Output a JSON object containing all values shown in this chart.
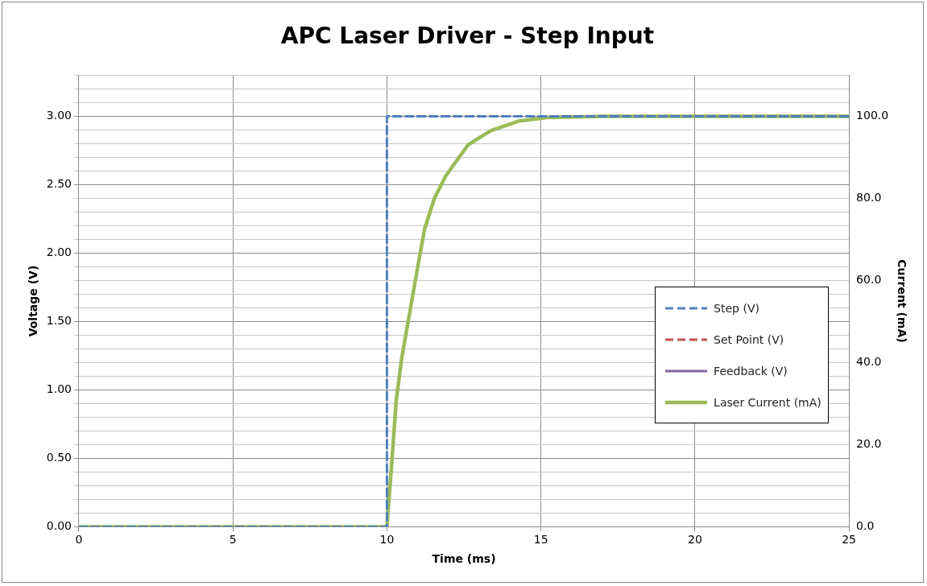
{
  "chart_data": {
    "type": "line",
    "title": "APC Laser Driver - Step Input",
    "xlabel": "Time (ms)",
    "ylabel": "Voltage (V)",
    "y2label": "Current (mA)",
    "xlim": [
      0,
      25
    ],
    "xticks": [
      0,
      5,
      10,
      15,
      20,
      25
    ],
    "ylim": [
      0,
      3.3
    ],
    "yticks": [
      {
        "value": 0,
        "label": "0.00"
      },
      {
        "value": 0.1,
        "label": null
      },
      {
        "value": 0.2,
        "label": null
      },
      {
        "value": 0.3,
        "label": null
      },
      {
        "value": 0.4,
        "label": null
      },
      {
        "value": 0.5,
        "label": "0.50"
      },
      {
        "value": 0.6,
        "label": null
      },
      {
        "value": 0.7,
        "label": null
      },
      {
        "value": 0.8,
        "label": null
      },
      {
        "value": 0.9,
        "label": null
      },
      {
        "value": 1,
        "label": "1.00"
      },
      {
        "value": 1.1,
        "label": null
      },
      {
        "value": 1.2,
        "label": null
      },
      {
        "value": 1.3,
        "label": null
      },
      {
        "value": 1.4,
        "label": null
      },
      {
        "value": 1.5,
        "label": "1.50"
      },
      {
        "value": 1.6,
        "label": null
      },
      {
        "value": 1.7,
        "label": null
      },
      {
        "value": 1.8,
        "label": null
      },
      {
        "value": 1.9,
        "label": null
      },
      {
        "value": 2,
        "label": "2.00"
      },
      {
        "value": 2.1,
        "label": null
      },
      {
        "value": 2.2,
        "label": null
      },
      {
        "value": 2.3,
        "label": null
      },
      {
        "value": 2.4,
        "label": null
      },
      {
        "value": 2.5,
        "label": "2.50"
      },
      {
        "value": 2.6,
        "label": null
      },
      {
        "value": 2.7,
        "label": null
      },
      {
        "value": 2.8,
        "label": null
      },
      {
        "value": 2.9,
        "label": null
      },
      {
        "value": 3,
        "label": "3.00"
      },
      {
        "value": 3.1,
        "label": null
      },
      {
        "value": 3.2,
        "label": null
      },
      {
        "value": 3.3,
        "label": null
      }
    ],
    "y2lim": [
      0,
      110
    ],
    "y2ticks": [
      {
        "value": 0,
        "label": "0.0"
      },
      {
        "value": 20,
        "label": "20.0"
      },
      {
        "value": 40,
        "label": "40.0"
      },
      {
        "value": 60,
        "label": "60.0"
      },
      {
        "value": 80,
        "label": "80.0"
      },
      {
        "value": 100,
        "label": "100.0"
      }
    ],
    "grid": true,
    "legend": "right",
    "marker": "none",
    "series": [
      {
        "name": "Step (V)",
        "color": "#4f81bd",
        "line_style": "dashed",
        "x": [
          0,
          10,
          10,
          25
        ],
        "values": [
          0,
          0,
          3,
          3
        ]
      },
      {
        "name": "Set Point (V)",
        "color": "#c0504d",
        "line_style": "dashed"
      },
      {
        "name": "Feedback (V)",
        "color": "#8064a2",
        "line_style": "solid"
      },
      {
        "name": "Laser Current (mA)",
        "color": "#9bbb59",
        "line_style": "solid",
        "axis": "y2",
        "x": [
          0,
          10,
          10.17,
          10.3,
          10.48,
          10.7,
          10.99,
          11.22,
          11.54,
          11.91,
          12.64,
          13.37,
          14.3,
          15.2,
          17,
          25
        ],
        "values": [
          0,
          0,
          16.9,
          30.7,
          41,
          50.5,
          62.9,
          72.5,
          80,
          85.5,
          93.1,
          96.5,
          98.9,
          99.7,
          100,
          100
        ]
      }
    ]
  }
}
